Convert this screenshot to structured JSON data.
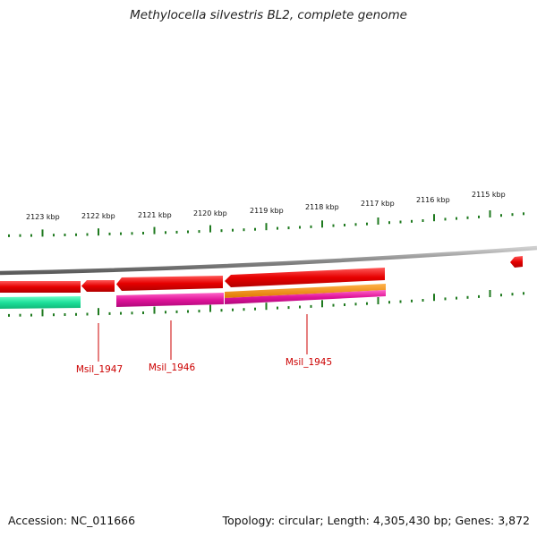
{
  "title": "Methylocella silvestris BL2, complete genome",
  "footer": {
    "accession": "Accession: NC_011666",
    "summary": "Topology: circular; Length: 4,305,430 bp; Genes: 3,872"
  },
  "ruler_labels": [
    "2123 kbp",
    "2122 kbp",
    "2121 kbp",
    "2120 kbp",
    "2119 kbp",
    "2118 kbp",
    "2117 kbp",
    "2116 kbp",
    "2115 kbp"
  ],
  "gene_labels": [
    "Msil_1947",
    "Msil_1946",
    "Msil_1945"
  ],
  "colors": {
    "tick": "#1f7a1f",
    "backbone": "#8a8a8a",
    "gene_red": "#e60000",
    "gene_magenta": "#e0149a",
    "gene_orange": "#f08a00",
    "gene_green": "#1de09a",
    "label_red": "#cc0000"
  }
}
